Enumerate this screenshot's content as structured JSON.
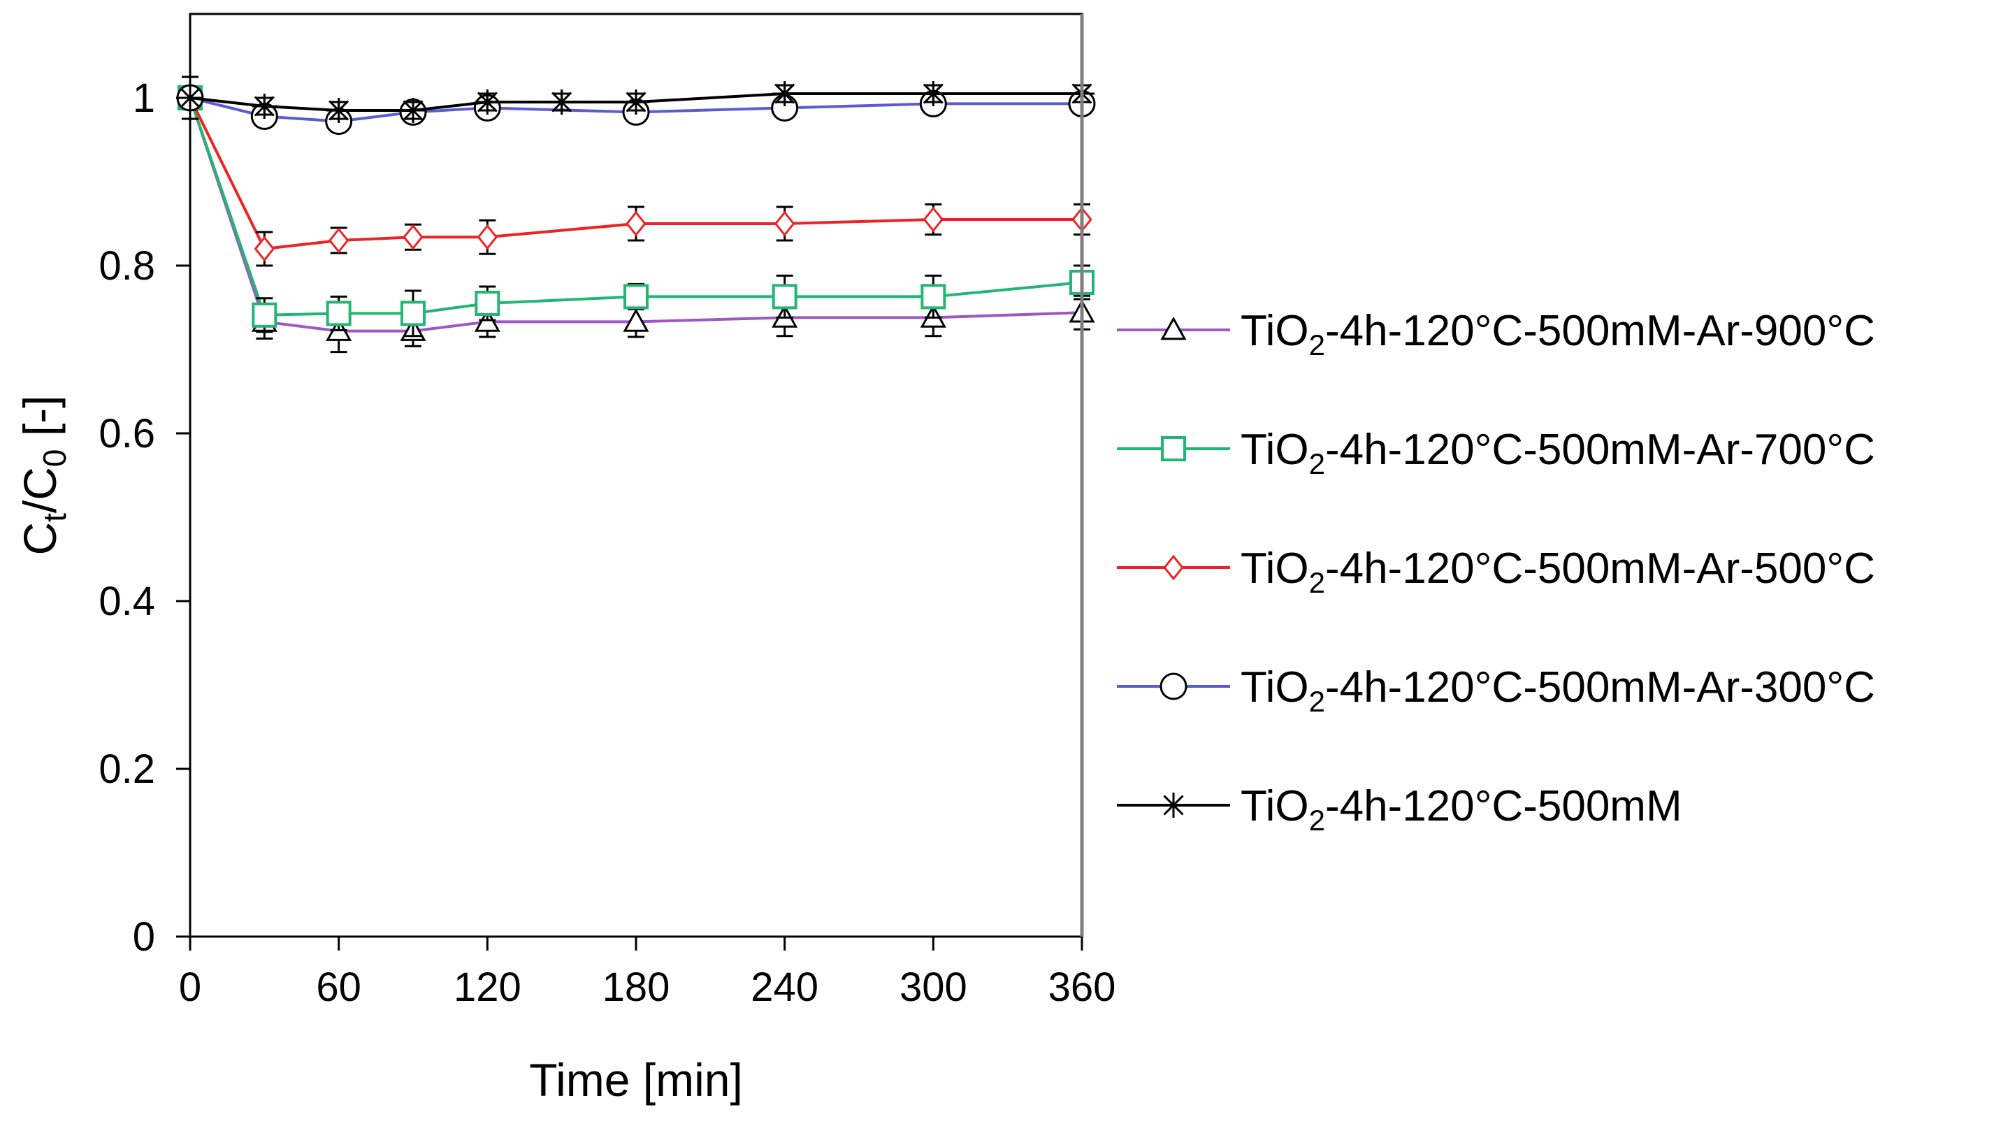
{
  "chart_data": {
    "type": "line",
    "xlabel": "Time [min]",
    "ylabel": {
      "main": "C",
      "sub1": "t",
      "mid": "/C",
      "sub2": "0",
      "unit": " [-]"
    },
    "xlim": [
      0,
      360
    ],
    "ylim": [
      0,
      1.1
    ],
    "xticks": [
      0,
      60,
      120,
      180,
      240,
      300,
      360
    ],
    "yticks": [
      0,
      0.2,
      0.4,
      0.6,
      0.8,
      1
    ],
    "ytick_labels": [
      "0",
      "0.2",
      "0.4",
      "0.6",
      "0.8",
      "1"
    ],
    "grid": false,
    "legend_position": "right",
    "series": [
      {
        "name": "TiO2-4h-120°C-500mM-Ar-900°C",
        "label_parts": [
          "TiO",
          "2",
          "-4h-120°C-500mM-Ar-900°C"
        ],
        "color": "#9b59c6",
        "marker": "triangle",
        "x": [
          0,
          30,
          60,
          90,
          120,
          180,
          240,
          300,
          360
        ],
        "y": [
          1.0,
          0.733,
          0.722,
          0.722,
          0.733,
          0.733,
          0.738,
          0.738,
          0.744
        ],
        "err": [
          0.01,
          0.02,
          0.025,
          0.018,
          0.018,
          0.018,
          0.022,
          0.022,
          0.02
        ]
      },
      {
        "name": "TiO2-4h-120°C-500mM-Ar-700°C",
        "label_parts": [
          "TiO",
          "2",
          "-4h-120°C-500mM-Ar-700°C"
        ],
        "color": "#22b573",
        "marker": "square",
        "x": [
          0,
          30,
          60,
          90,
          120,
          180,
          240,
          300,
          360
        ],
        "y": [
          1.0,
          0.741,
          0.743,
          0.743,
          0.755,
          0.763,
          0.763,
          0.763,
          0.78
        ],
        "err": [
          0.01,
          0.02,
          0.02,
          0.027,
          0.02,
          0.015,
          0.025,
          0.025,
          0.02
        ]
      },
      {
        "name": "TiO2-4h-120°C-500mM-Ar-500°C",
        "label_parts": [
          "TiO",
          "2",
          "-4h-120°C-500mM-Ar-500°C"
        ],
        "color": "#ee2222",
        "marker": "diamond",
        "x": [
          0,
          30,
          60,
          90,
          120,
          180,
          240,
          300,
          360
        ],
        "y": [
          1.0,
          0.82,
          0.83,
          0.834,
          0.834,
          0.85,
          0.85,
          0.855,
          0.855
        ],
        "err": [
          0.01,
          0.02,
          0.015,
          0.015,
          0.02,
          0.02,
          0.02,
          0.018,
          0.018
        ]
      },
      {
        "name": "TiO2-4h-120°C-500mM-Ar-300°C",
        "label_parts": [
          "TiO",
          "2",
          "-4h-120°C-500mM-Ar-300°C"
        ],
        "color": "#5b5bd6",
        "marker": "circle",
        "x": [
          0,
          30,
          60,
          90,
          120,
          180,
          240,
          300,
          360
        ],
        "y": [
          1.0,
          0.978,
          0.972,
          0.983,
          0.988,
          0.983,
          0.988,
          0.993,
          0.993
        ],
        "err": [
          0.01,
          0.008,
          0.008,
          0.008,
          0.008,
          0.008,
          0.008,
          0.008,
          0.008
        ]
      },
      {
        "name": "TiO2-4h-120°C-500mM",
        "label_parts": [
          "TiO",
          "2",
          "-4h-120°C-500mM"
        ],
        "color": "#000000",
        "marker": "star",
        "x": [
          0,
          30,
          60,
          90,
          120,
          150,
          180,
          240,
          300,
          360
        ],
        "y": [
          1.0,
          0.99,
          0.985,
          0.985,
          0.995,
          0.995,
          0.995,
          1.005,
          1.005,
          1.005
        ],
        "err": [
          0.025,
          0.01,
          0.01,
          0.01,
          0.01,
          0.01,
          0.01,
          0.01,
          0.01,
          0.01
        ]
      }
    ]
  }
}
